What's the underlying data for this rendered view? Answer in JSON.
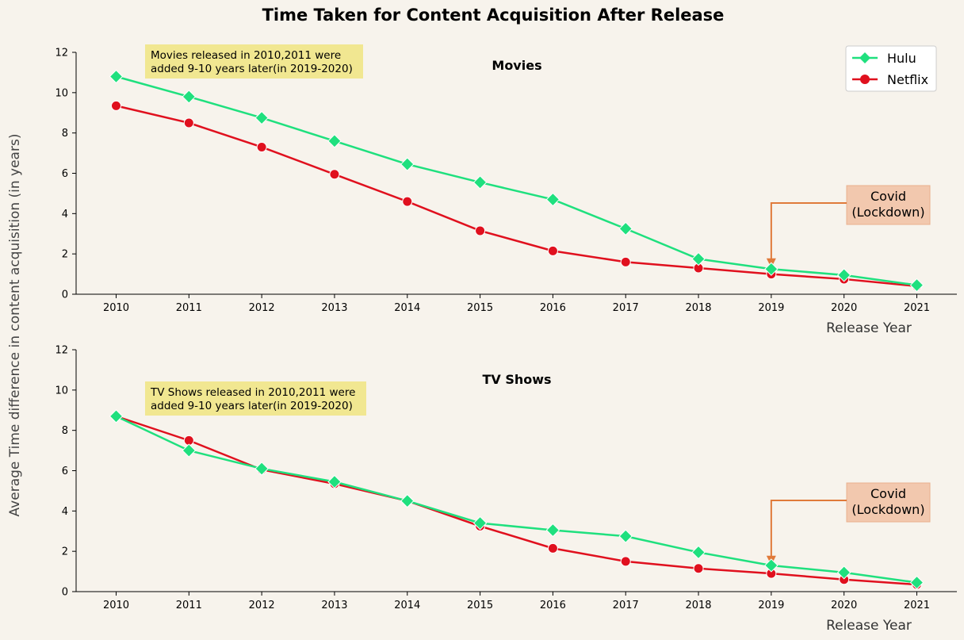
{
  "title": "Time Taken for Content Acquisition After Release",
  "ylabel": "Average Time difference in content acquisition (in years)",
  "colors": {
    "background": "#f7f3ec",
    "hulu": "#1fe07e",
    "netflix": "#e0101e",
    "note_box": "#f0e68c",
    "covid_box": "#f2c8ae",
    "covid_arrow": "#e07a3a"
  },
  "chart_data": [
    {
      "type": "line",
      "title": "Movies",
      "xlabel": "Release Year",
      "ylabel": "",
      "x": [
        2010,
        2011,
        2012,
        2013,
        2014,
        2015,
        2016,
        2017,
        2018,
        2019,
        2020,
        2021
      ],
      "ylim": [
        0,
        12
      ],
      "yticks": [
        "0",
        "2",
        "4",
        "6",
        "8",
        "10",
        "12"
      ],
      "legend_position": "top-right",
      "series": [
        {
          "name": "Hulu",
          "marker": "diamond",
          "values": [
            10.8,
            9.8,
            8.75,
            7.6,
            6.45,
            5.55,
            4.7,
            3.25,
            1.75,
            1.25,
            0.95,
            0.45
          ]
        },
        {
          "name": "Netflix",
          "marker": "circle",
          "values": [
            9.35,
            8.5,
            7.3,
            5.95,
            4.6,
            3.15,
            2.15,
            1.6,
            1.3,
            1.0,
            0.75,
            0.4
          ]
        }
      ],
      "note": "Movies released in 2010,2011 were\nadded 9-10 years later(in 2019-2020)",
      "covid_label": "Covid\n(Lockdown)",
      "covid_year": 2019
    },
    {
      "type": "line",
      "title": "TV Shows",
      "xlabel": "Release Year",
      "ylabel": "",
      "x": [
        2010,
        2011,
        2012,
        2013,
        2014,
        2015,
        2016,
        2017,
        2018,
        2019,
        2020,
        2021
      ],
      "ylim": [
        0,
        12
      ],
      "yticks": [
        "0",
        "2",
        "4",
        "6",
        "8",
        "10",
        "12"
      ],
      "series": [
        {
          "name": "Hulu",
          "marker": "diamond",
          "values": [
            8.7,
            7.0,
            6.1,
            5.45,
            4.5,
            3.4,
            3.05,
            2.75,
            1.95,
            1.3,
            0.95,
            0.45
          ]
        },
        {
          "name": "Netflix",
          "marker": "circle",
          "values": [
            8.7,
            7.5,
            6.05,
            5.35,
            4.5,
            3.25,
            2.15,
            1.5,
            1.15,
            0.9,
            0.6,
            0.35
          ]
        }
      ],
      "note": "TV Shows released in 2010,2011 were\nadded 9-10 years later(in 2019-2020)",
      "covid_label": "Covid\n(Lockdown)",
      "covid_year": 2019
    }
  ]
}
